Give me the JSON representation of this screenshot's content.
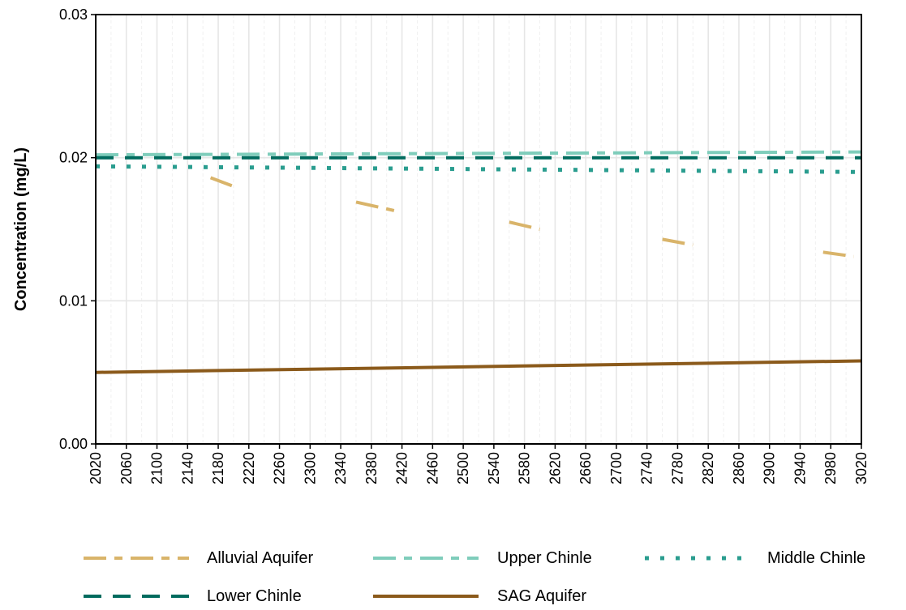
{
  "chart_data": {
    "type": "line",
    "title": "",
    "xlabel": "",
    "ylabel": "Concentration (mg/L)",
    "xlim": [
      2020,
      3020
    ],
    "ylim": [
      0,
      0.03
    ],
    "x_ticks": [
      "2020",
      "2060",
      "2100",
      "2140",
      "2180",
      "2220",
      "2260",
      "2300",
      "2340",
      "2380",
      "2420",
      "2460",
      "2500",
      "2540",
      "2580",
      "2620",
      "2660",
      "2700",
      "2740",
      "2780",
      "2820",
      "2860",
      "2900",
      "2940",
      "2980",
      "3020"
    ],
    "y_ticks": [
      "0.00",
      "0.01",
      "0.02",
      "0.03"
    ],
    "grid": true,
    "legend_position": "bottom",
    "series": [
      {
        "name": "Alluvial Aquifer",
        "color": "#D9B46A",
        "dash": "dash-dot",
        "segments": [
          [
            [
              2170,
              0.0186
            ],
            [
              2200,
              0.018
            ]
          ],
          [
            [
              2360,
              0.0169
            ],
            [
              2410,
              0.0163
            ]
          ],
          [
            [
              2560,
              0.0155
            ],
            [
              2600,
              0.015
            ]
          ],
          [
            [
              2760,
              0.0143
            ],
            [
              2800,
              0.0139
            ]
          ],
          [
            [
              2970,
              0.0134
            ],
            [
              3010,
              0.0131
            ]
          ]
        ]
      },
      {
        "name": "Upper Chinle",
        "color": "#7FCDBB",
        "dash": "dash-dot",
        "points": [
          [
            2020,
            0.0202
          ],
          [
            3020,
            0.0204
          ]
        ]
      },
      {
        "name": "Middle Chinle",
        "color": "#2A9D8F",
        "dash": "dotted",
        "points": [
          [
            2020,
            0.0194
          ],
          [
            3020,
            0.019
          ]
        ]
      },
      {
        "name": "Lower Chinle",
        "color": "#006B5E",
        "dash": "dashed",
        "points": [
          [
            2020,
            0.02
          ],
          [
            3020,
            0.02
          ]
        ]
      },
      {
        "name": "SAG Aquifer",
        "color": "#8B5A1B",
        "dash": "solid",
        "points": [
          [
            2020,
            0.005
          ],
          [
            3020,
            0.0058
          ]
        ]
      }
    ]
  }
}
